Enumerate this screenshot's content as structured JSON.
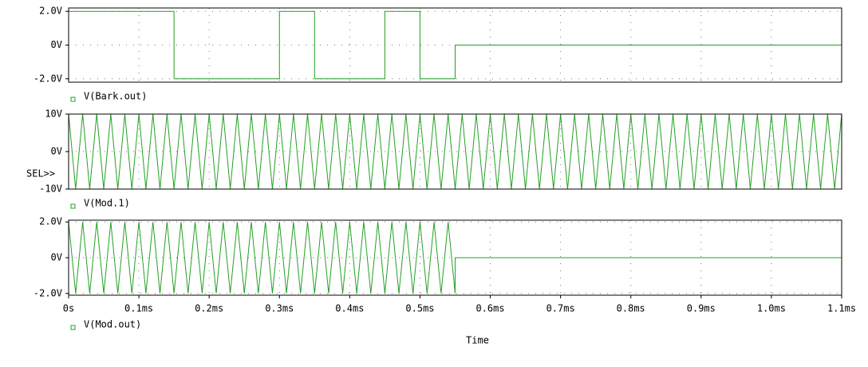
{
  "chart_data": [
    {
      "type": "line",
      "xlim": [
        0,
        1.1
      ],
      "ylim": [
        -2.2,
        2.2
      ],
      "grid": true,
      "yticks": [
        {
          "value": 2,
          "label": "2.0V"
        },
        {
          "value": 0,
          "label": "0V"
        },
        {
          "value": -2,
          "label": "-2.0V"
        }
      ],
      "x": [
        0,
        0.15,
        0.15,
        0.3,
        0.3,
        0.35,
        0.35,
        0.45,
        0.45,
        0.5,
        0.5,
        0.55,
        0.55,
        1.1
      ],
      "series": [
        {
          "name": "V(Bark.out)",
          "color": "#22a022",
          "values": [
            2,
            2,
            -2,
            -2,
            2,
            2,
            -2,
            -2,
            2,
            2,
            -2,
            -2,
            0,
            0
          ]
        }
      ]
    },
    {
      "type": "line",
      "xlim": [
        0,
        1.1
      ],
      "ylim": [
        -10,
        10
      ],
      "grid": true,
      "annotation": "SEL>>",
      "yticks": [
        {
          "value": 10,
          "label": "10V"
        },
        {
          "value": 0,
          "label": "0V"
        },
        {
          "value": -10,
          "label": "-10V"
        }
      ],
      "x": [
        0,
        0.01,
        0.02,
        0.03,
        0.04,
        0.05,
        0.06,
        0.07,
        0.08,
        0.09,
        0.1,
        0.11,
        0.12,
        0.13,
        0.14,
        0.15,
        0.16,
        0.17,
        0.18,
        0.19,
        0.2,
        0.21,
        0.22,
        0.23,
        0.24,
        0.25,
        0.26,
        0.27,
        0.28,
        0.29,
        0.3,
        0.31,
        0.32,
        0.33,
        0.34,
        0.35,
        0.36,
        0.37,
        0.38,
        0.39,
        0.4,
        0.41,
        0.42,
        0.43,
        0.44,
        0.45,
        0.46,
        0.47,
        0.48,
        0.49,
        0.5,
        0.51,
        0.52,
        0.53,
        0.54,
        0.55,
        0.56,
        0.57,
        0.58,
        0.59,
        0.6,
        0.61,
        0.62,
        0.63,
        0.64,
        0.65,
        0.66,
        0.67,
        0.68,
        0.69,
        0.7,
        0.71,
        0.72,
        0.73,
        0.74,
        0.75,
        0.76,
        0.77,
        0.78,
        0.79,
        0.8,
        0.81,
        0.82,
        0.83,
        0.84,
        0.85,
        0.86,
        0.87,
        0.88,
        0.89,
        0.9,
        0.91,
        0.92,
        0.93,
        0.94,
        0.95,
        0.96,
        0.97,
        0.98,
        0.99,
        1.0,
        1.01,
        1.02,
        1.03,
        1.04,
        1.05,
        1.06,
        1.07,
        1.08,
        1.09,
        1.1
      ],
      "series": [
        {
          "name": "V(Mod.1)",
          "color": "#22a022",
          "values": [
            10,
            -10,
            10,
            -10,
            10,
            -10,
            10,
            -10,
            10,
            -10,
            10,
            -10,
            10,
            -10,
            10,
            -10,
            10,
            -10,
            10,
            -10,
            10,
            -10,
            10,
            -10,
            10,
            -10,
            10,
            -10,
            10,
            -10,
            10,
            -10,
            10,
            -10,
            10,
            -10,
            10,
            -10,
            10,
            -10,
            10,
            -10,
            10,
            -10,
            10,
            -10,
            10,
            -10,
            10,
            -10,
            10,
            -10,
            10,
            -10,
            10,
            -10,
            10,
            -10,
            10,
            -10,
            10,
            -10,
            10,
            -10,
            10,
            -10,
            10,
            -10,
            10,
            -10,
            10,
            -10,
            10,
            -10,
            10,
            -10,
            10,
            -10,
            10,
            -10,
            10,
            -10,
            10,
            -10,
            10,
            -10,
            10,
            -10,
            10,
            -10,
            10,
            -10,
            10,
            -10,
            10,
            -10,
            10,
            -10,
            10,
            -10,
            10,
            -10,
            10,
            -10,
            10,
            -10,
            10,
            -10,
            10,
            -10,
            10
          ]
        }
      ]
    },
    {
      "type": "line",
      "xlim": [
        0,
        1.1
      ],
      "ylim": [
        -2.1,
        2.1
      ],
      "grid": true,
      "x_label": "Time",
      "yticks": [
        {
          "value": 2,
          "label": "2.0V"
        },
        {
          "value": 0,
          "label": "0V"
        },
        {
          "value": -2,
          "label": "-2.0V"
        }
      ],
      "xticks": [
        {
          "value": 0,
          "label": "0s"
        },
        {
          "value": 0.1,
          "label": "0.1ms"
        },
        {
          "value": 0.2,
          "label": "0.2ms"
        },
        {
          "value": 0.3,
          "label": "0.3ms"
        },
        {
          "value": 0.4,
          "label": "0.4ms"
        },
        {
          "value": 0.5,
          "label": "0.5ms"
        },
        {
          "value": 0.6,
          "label": "0.6ms"
        },
        {
          "value": 0.7,
          "label": "0.7ms"
        },
        {
          "value": 0.8,
          "label": "0.8ms"
        },
        {
          "value": 0.9,
          "label": "0.9ms"
        },
        {
          "value": 1.0,
          "label": "1.0ms"
        },
        {
          "value": 1.1,
          "label": "1.1ms"
        }
      ],
      "x": [
        0,
        0.01,
        0.02,
        0.03,
        0.04,
        0.05,
        0.06,
        0.07,
        0.08,
        0.09,
        0.1,
        0.11,
        0.12,
        0.13,
        0.14,
        0.15,
        0.16,
        0.17,
        0.18,
        0.19,
        0.2,
        0.21,
        0.22,
        0.23,
        0.24,
        0.25,
        0.26,
        0.27,
        0.28,
        0.29,
        0.3,
        0.31,
        0.32,
        0.33,
        0.34,
        0.35,
        0.36,
        0.37,
        0.38,
        0.39,
        0.4,
        0.41,
        0.42,
        0.43,
        0.44,
        0.45,
        0.46,
        0.47,
        0.48,
        0.49,
        0.5,
        0.51,
        0.52,
        0.53,
        0.54,
        0.55,
        0.55,
        1.1
      ],
      "series": [
        {
          "name": "V(Mod.out)",
          "color": "#22a022",
          "values": [
            2,
            -2,
            2,
            -2,
            2,
            -2,
            2,
            -2,
            2,
            -2,
            2,
            -2,
            2,
            -2,
            2,
            -2,
            2,
            -2,
            2,
            -2,
            2,
            -2,
            2,
            -2,
            2,
            -2,
            2,
            -2,
            2,
            -2,
            2,
            -2,
            2,
            -2,
            2,
            -2,
            2,
            -2,
            2,
            -2,
            2,
            -2,
            2,
            -2,
            2,
            -2,
            2,
            -2,
            2,
            -2,
            2,
            -2,
            2,
            -2,
            2,
            -2,
            0,
            0
          ]
        }
      ]
    }
  ]
}
